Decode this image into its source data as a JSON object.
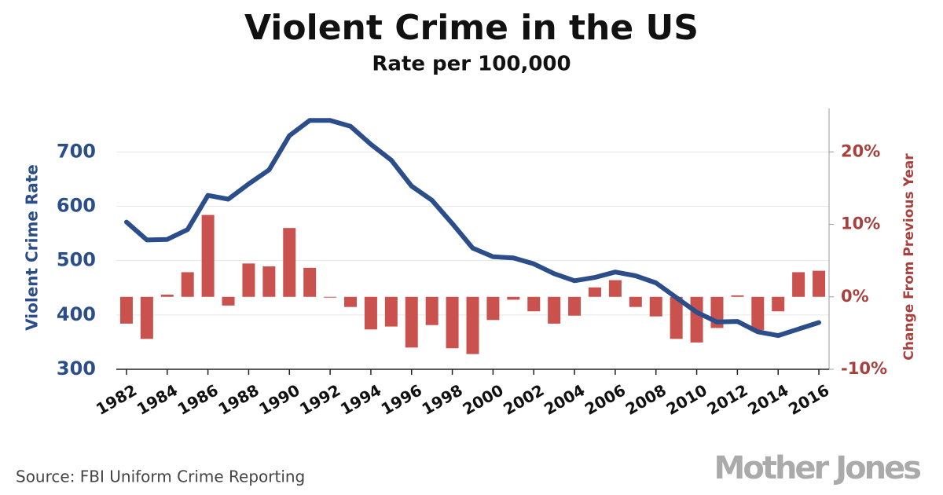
{
  "chart_data": {
    "type": "combo",
    "title": "Violent Crime in the US",
    "subtitle": "Rate per 100,000",
    "ylabel": "Violent Crime Rate",
    "y2label": "Change From Previous Year",
    "source": "Source: FBI Uniform Crime Reporting",
    "logo": "Mother Jones",
    "x": [
      1982,
      1983,
      1984,
      1985,
      1986,
      1987,
      1988,
      1989,
      1990,
      1991,
      1992,
      1993,
      1994,
      1995,
      1996,
      1997,
      1998,
      1999,
      2000,
      2001,
      2002,
      2003,
      2004,
      2005,
      2006,
      2007,
      2008,
      2009,
      2010,
      2011,
      2012,
      2013,
      2014,
      2015,
      2016
    ],
    "xlim": [
      1981.5,
      2016.5
    ],
    "xticks": [
      1982,
      1984,
      1986,
      1988,
      1990,
      1992,
      1994,
      1996,
      1998,
      2000,
      2002,
      2004,
      2006,
      2008,
      2010,
      2012,
      2014,
      2016
    ],
    "ylim": [
      300,
      780
    ],
    "yticks": [
      300,
      400,
      500,
      600,
      700
    ],
    "y2lim": [
      -10,
      26
    ],
    "y2ticks": [
      {
        "value": 20,
        "label": "20%"
      },
      {
        "value": 10,
        "label": "10%"
      },
      {
        "value": 0,
        "label": "0%"
      },
      {
        "value": -10,
        "label": "-10%"
      }
    ],
    "grid": true,
    "series": [
      {
        "type": "bar",
        "axis": "y2",
        "color": "#c9524f",
        "values": [
          -3.7,
          -5.8,
          0.3,
          3.4,
          11.3,
          -1.2,
          4.6,
          4.2,
          9.5,
          4.0,
          -0.1,
          -1.4,
          -4.5,
          -4.1,
          -7.0,
          -3.9,
          -7.1,
          -7.9,
          -3.2,
          -0.4,
          -2.0,
          -3.7,
          -2.6,
          1.3,
          2.3,
          -1.4,
          -2.7,
          -5.8,
          -6.3,
          -4.3,
          0.2,
          -4.6,
          -2.0,
          3.4,
          3.6
        ]
      },
      {
        "type": "line",
        "axis": "y",
        "color": "#2b4e8a",
        "values": [
          571,
          538,
          539,
          557,
          620,
          613,
          641,
          667,
          730,
          758,
          758,
          747,
          714,
          685,
          637,
          611,
          568,
          523,
          507,
          505,
          494,
          476,
          463,
          469,
          479,
          472,
          459,
          432,
          405,
          387,
          388,
          369,
          362,
          374,
          386
        ]
      }
    ]
  }
}
